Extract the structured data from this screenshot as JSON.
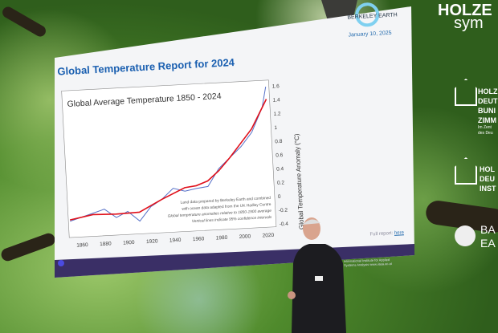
{
  "slide": {
    "title": "Global Temperature Report for 2024",
    "logo_text": "BERKELEY EARTH",
    "date": "January 10, 2025",
    "full_report_label": "Full report:",
    "full_report_link": "here",
    "footer_org": "International Institute for Applied Systems Analysis",
    "footer_url": "www.iiasa.ac.at"
  },
  "chart_data": {
    "type": "line",
    "title": "Global Average Temperature 1850 - 2024",
    "ylabel": "Global Temperature Anomaly (°C)",
    "xlim": [
      1850,
      2024
    ],
    "ylim": [
      -0.4,
      1.6
    ],
    "x_ticks": [
      "1860",
      "1880",
      "1900",
      "1920",
      "1940",
      "1960",
      "1980",
      "2000",
      "2020"
    ],
    "y_ticks": [
      "-0.4",
      "-0.2",
      "0",
      "0.2",
      "0.4",
      "0.6",
      "0.8",
      "1",
      "1.2",
      "1.4",
      "1.6"
    ],
    "annotations": [
      "Land data prepared by Berkeley Earth and combined",
      "with ocean data adapted from the UK Hadley Centre",
      "Global temperature anomalies relative to 1850-1900 average",
      "Vertical lines indicate 95% confidence intervals"
    ],
    "series": [
      {
        "x": [
          1850,
          1860,
          1870,
          1880,
          1890,
          1900,
          1910,
          1920,
          1930,
          1940,
          1950,
          1960,
          1970,
          1980,
          1990,
          2000,
          2010,
          2020,
          2024
        ],
        "y": [
          -0.2,
          -0.15,
          -0.1,
          -0.05,
          -0.18,
          -0.1,
          -0.25,
          -0.05,
          0.05,
          0.2,
          0.15,
          0.18,
          0.2,
          0.45,
          0.6,
          0.75,
          0.95,
          1.3,
          1.6
        ]
      },
      {
        "x": [
          1850,
          1870,
          1890,
          1910,
          1930,
          1950,
          1960,
          1970,
          1980,
          1990,
          2000,
          2010,
          2020,
          2024
        ],
        "y": [
          -0.18,
          -0.12,
          -0.13,
          -0.12,
          0.05,
          0.2,
          0.22,
          0.28,
          0.42,
          0.6,
          0.8,
          1.0,
          1.3,
          1.42
        ]
      }
    ]
  },
  "signage": {
    "top": "HOLZE",
    "top2": "sym",
    "logo1_lines": [
      "HOLZ",
      "DEUT",
      "BUNI",
      "ZIMM"
    ],
    "logo1_small": [
      "Im Zent",
      "des Deu"
    ],
    "logo2_lines": [
      "HOL",
      "DEU",
      "INST"
    ],
    "bottom_lines": [
      "BA",
      "EA"
    ]
  },
  "colors": {
    "title": "#1a5fb0",
    "smooth": "#e0101a",
    "raw": "#5570c8",
    "footer": "#3a2f66"
  }
}
